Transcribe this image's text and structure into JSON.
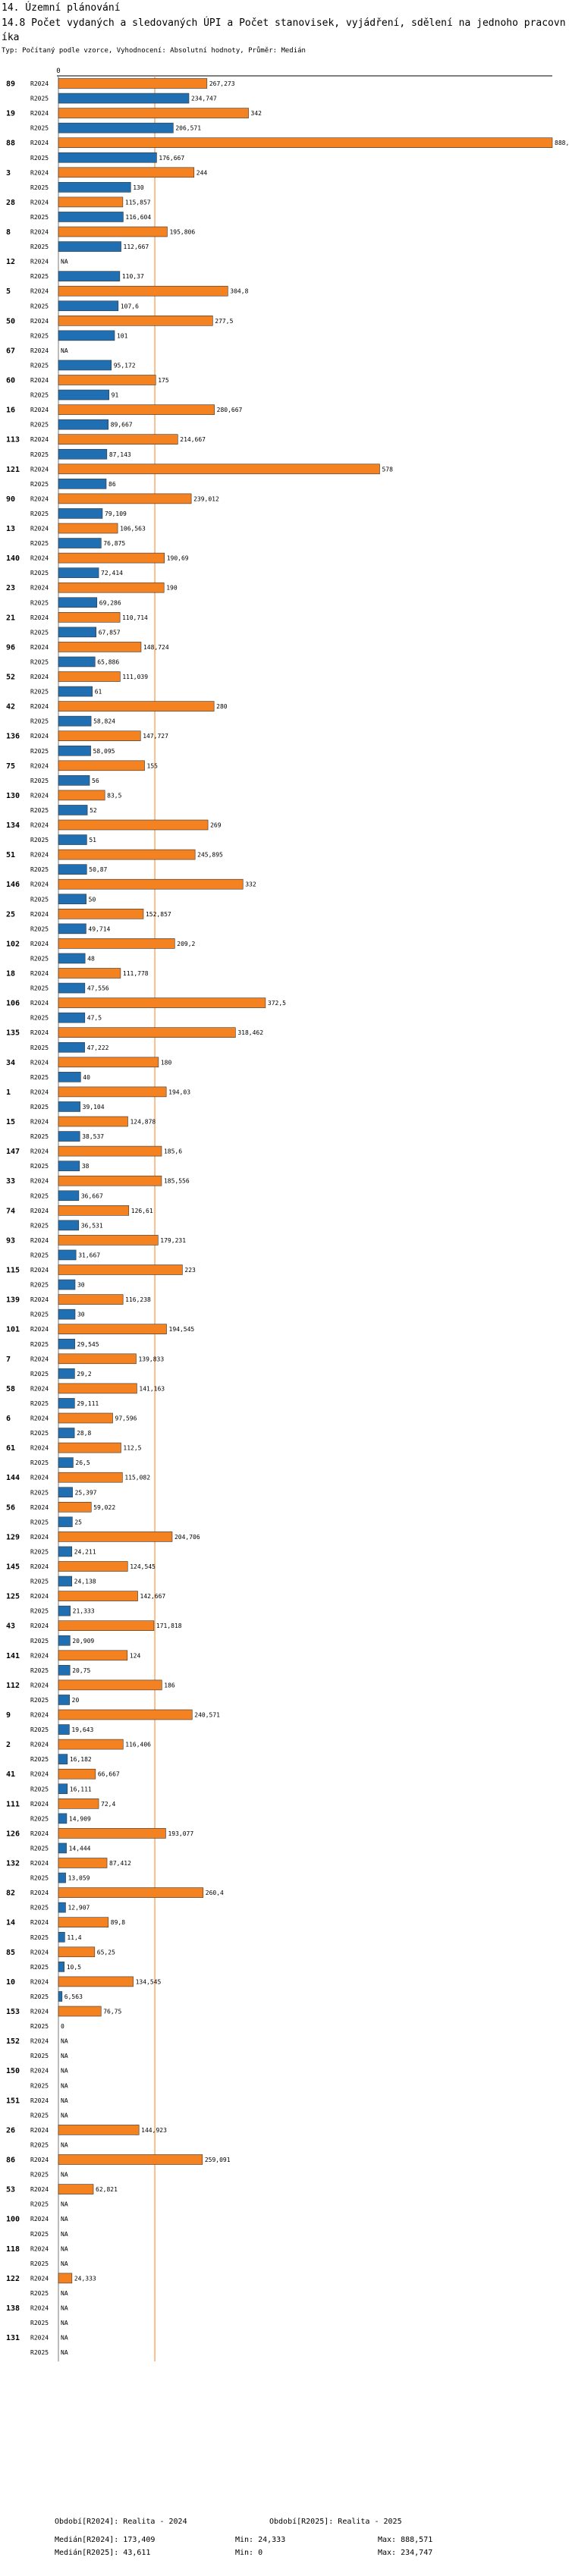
{
  "header": {
    "section": "14. Územní plánování",
    "title": "14.8 Počet vydaných a sledovaných ÚPI a Počet stanovisek, vyjádření, sdělení na jednoho pracovníka",
    "subtitle": "Typ: Počítaný podle vzorce, Vyhodnocení: Absolutní hodnoty, Průměr: Medián"
  },
  "colors": {
    "r2024": "#f58220",
    "r2025": "#1f6fb2",
    "median_line": "#f58220",
    "axis": "#000000"
  },
  "chart_data": {
    "type": "bar",
    "orientation": "horizontal",
    "series_names": [
      "R2024",
      "R2025"
    ],
    "na_label": "NA",
    "xlim": [
      0,
      888.571
    ],
    "x_tick_labels": [
      "0"
    ],
    "median_2024": 173.409,
    "median_2025": 43.611,
    "groups": [
      {
        "id": "89",
        "r2024": 267.273,
        "r2025": 234.747
      },
      {
        "id": "19",
        "r2024": 342,
        "r2025": 206.571
      },
      {
        "id": "88",
        "r2024": 888.571,
        "r2025": 176.667
      },
      {
        "id": "3",
        "r2024": 244,
        "r2025": 130
      },
      {
        "id": "28",
        "r2024": 115.857,
        "r2025": 116.604
      },
      {
        "id": "8",
        "r2024": 195.806,
        "r2025": 112.667
      },
      {
        "id": "12",
        "r2024": null,
        "r2025": 110.37
      },
      {
        "id": "5",
        "r2024": 304.8,
        "r2025": 107.6
      },
      {
        "id": "50",
        "r2024": 277.5,
        "r2025": 101
      },
      {
        "id": "67",
        "r2024": null,
        "r2025": 95.172
      },
      {
        "id": "60",
        "r2024": 175,
        "r2025": 91
      },
      {
        "id": "16",
        "r2024": 280.667,
        "r2025": 89.667
      },
      {
        "id": "113",
        "r2024": 214.667,
        "r2025": 87.143
      },
      {
        "id": "121",
        "r2024": 578,
        "r2025": 86
      },
      {
        "id": "90",
        "r2024": 239.012,
        "r2025": 79.109
      },
      {
        "id": "13",
        "r2024": 106.563,
        "r2025": 76.875
      },
      {
        "id": "140",
        "r2024": 190.69,
        "r2025": 72.414
      },
      {
        "id": "23",
        "r2024": 190,
        "r2025": 69.286
      },
      {
        "id": "21",
        "r2024": 110.714,
        "r2025": 67.857
      },
      {
        "id": "96",
        "r2024": 148.724,
        "r2025": 65.886
      },
      {
        "id": "52",
        "r2024": 111.039,
        "r2025": 61
      },
      {
        "id": "42",
        "r2024": 280,
        "r2025": 58.824
      },
      {
        "id": "136",
        "r2024": 147.727,
        "r2025": 58.095
      },
      {
        "id": "75",
        "r2024": 155,
        "r2025": 56
      },
      {
        "id": "130",
        "r2024": 83.5,
        "r2025": 52
      },
      {
        "id": "134",
        "r2024": 269,
        "r2025": 51
      },
      {
        "id": "51",
        "r2024": 245.895,
        "r2025": 50.87
      },
      {
        "id": "146",
        "r2024": 332,
        "r2025": 50
      },
      {
        "id": "25",
        "r2024": 152.857,
        "r2025": 49.714
      },
      {
        "id": "102",
        "r2024": 209.2,
        "r2025": 48
      },
      {
        "id": "18",
        "r2024": 111.778,
        "r2025": 47.556
      },
      {
        "id": "106",
        "r2024": 372.5,
        "r2025": 47.5
      },
      {
        "id": "135",
        "r2024": 318.462,
        "r2025": 47.222
      },
      {
        "id": "34",
        "r2024": 180,
        "r2025": 40
      },
      {
        "id": "1",
        "r2024": 194.03,
        "r2025": 39.104
      },
      {
        "id": "15",
        "r2024": 124.878,
        "r2025": 38.537
      },
      {
        "id": "147",
        "r2024": 185.6,
        "r2025": 38
      },
      {
        "id": "33",
        "r2024": 185.556,
        "r2025": 36.667
      },
      {
        "id": "74",
        "r2024": 126.61,
        "r2025": 36.531
      },
      {
        "id": "93",
        "r2024": 179.231,
        "r2025": 31.667
      },
      {
        "id": "115",
        "r2024": 223,
        "r2025": 30
      },
      {
        "id": "139",
        "r2024": 116.238,
        "r2025": 30
      },
      {
        "id": "101",
        "r2024": 194.545,
        "r2025": 29.545
      },
      {
        "id": "7",
        "r2024": 139.833,
        "r2025": 29.2
      },
      {
        "id": "58",
        "r2024": 141.163,
        "r2025": 29.111
      },
      {
        "id": "6",
        "r2024": 97.596,
        "r2025": 28.8
      },
      {
        "id": "61",
        "r2024": 112.5,
        "r2025": 26.5
      },
      {
        "id": "144",
        "r2024": 115.082,
        "r2025": 25.397
      },
      {
        "id": "56",
        "r2024": 59.022,
        "r2025": 25
      },
      {
        "id": "129",
        "r2024": 204.706,
        "r2025": 24.211
      },
      {
        "id": "145",
        "r2024": 124.545,
        "r2025": 24.138
      },
      {
        "id": "125",
        "r2024": 142.667,
        "r2025": 21.333
      },
      {
        "id": "43",
        "r2024": 171.818,
        "r2025": 20.909
      },
      {
        "id": "141",
        "r2024": 124,
        "r2025": 20.75
      },
      {
        "id": "112",
        "r2024": 186,
        "r2025": 20
      },
      {
        "id": "9",
        "r2024": 240.571,
        "r2025": 19.643
      },
      {
        "id": "2",
        "r2024": 116.406,
        "r2025": 16.182
      },
      {
        "id": "41",
        "r2024": 66.667,
        "r2025": 16.111
      },
      {
        "id": "111",
        "r2024": 72.4,
        "r2025": 14.909
      },
      {
        "id": "126",
        "r2024": 193.077,
        "r2025": 14.444
      },
      {
        "id": "132",
        "r2024": 87.412,
        "r2025": 13.059
      },
      {
        "id": "82",
        "r2024": 260.4,
        "r2025": 12.907
      },
      {
        "id": "14",
        "r2024": 89.8,
        "r2025": 11.4
      },
      {
        "id": "85",
        "r2024": 65.25,
        "r2025": 10.5
      },
      {
        "id": "10",
        "r2024": 134.545,
        "r2025": 6.563
      },
      {
        "id": "153",
        "r2024": 76.75,
        "r2025": 0
      },
      {
        "id": "152",
        "r2024": null,
        "r2025": null
      },
      {
        "id": "150",
        "r2024": null,
        "r2025": null
      },
      {
        "id": "151",
        "r2024": null,
        "r2025": null
      },
      {
        "id": "26",
        "r2024": 144.923,
        "r2025": null
      },
      {
        "id": "86",
        "r2024": 259.091,
        "r2025": null
      },
      {
        "id": "53",
        "r2024": 62.821,
        "r2025": null
      },
      {
        "id": "100",
        "r2024": null,
        "r2025": null
      },
      {
        "id": "118",
        "r2024": null,
        "r2025": null
      },
      {
        "id": "122",
        "r2024": 24.333,
        "r2025": null
      },
      {
        "id": "138",
        "r2024": null,
        "r2025": null
      },
      {
        "id": "131",
        "r2024": null,
        "r2025": null
      }
    ]
  },
  "footer": {
    "obdobi_2024": "Období[R2024]: Realita - 2024",
    "obdobi_2025": "Období[R2025]: Realita - 2025",
    "median_2024_text": "Medián[R2024]: 173,409",
    "median_2025_text": "Medián[R2025]: 43,611",
    "min_2024_text": "Min: 24,333",
    "min_2025_text": "Min: 0",
    "max_2024_text": "Max: 888,571",
    "max_2025_text": "Max: 234,747"
  }
}
